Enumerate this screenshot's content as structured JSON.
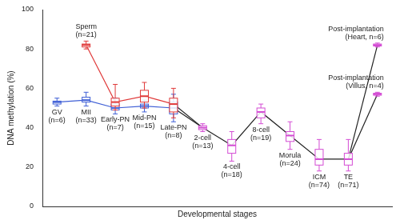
{
  "chart_data": {
    "type": "line",
    "x_label": "Developmental stages",
    "y_label": "DNA methylation (%)",
    "categories": [
      null,
      null,
      null,
      null,
      null,
      null,
      null,
      null,
      null,
      null,
      null,
      null
    ],
    "ylim": [
      0,
      100
    ],
    "yticks": [
      0,
      20,
      40,
      60,
      80,
      100
    ],
    "grid": false,
    "tick_labels": "y",
    "series": [
      {
        "color": "#3f5fd6",
        "values": [
          53,
          54,
          50,
          51,
          50,
          null,
          null,
          null,
          null,
          null,
          null,
          null
        ],
        "q1": [
          52,
          53,
          49,
          50,
          47,
          null,
          null,
          null,
          null,
          null,
          null,
          null
        ],
        "q3": [
          53.5,
          55.5,
          52,
          52,
          53,
          null,
          null,
          null,
          null,
          null,
          null,
          null
        ],
        "low": [
          51,
          51,
          47,
          48,
          43,
          null,
          null,
          null,
          null,
          null,
          null,
          null
        ],
        "high": [
          55,
          58,
          55,
          54,
          57,
          null,
          null,
          null,
          null,
          null,
          null,
          null
        ],
        "point_labels": [
          [
            "GV",
            "(n=6)"
          ],
          [
            "MII",
            "(n=33)"
          ],
          [
            "Early-PN",
            "(n=7)"
          ],
          [
            "Mid-PN",
            "(n=15)"
          ],
          [
            "Late-PN",
            "(n=8)"
          ],
          null,
          null,
          null,
          null,
          null,
          null,
          null
        ]
      },
      {
        "color": "#e03a3a",
        "values": [
          null,
          82,
          53,
          56,
          52,
          null,
          null,
          null,
          null,
          null,
          null,
          null
        ],
        "q1": [
          null,
          81,
          51,
          53,
          48,
          null,
          null,
          null,
          null,
          null,
          null,
          null
        ],
        "q3": [
          null,
          82.5,
          55,
          59,
          55,
          null,
          null,
          null,
          null,
          null,
          null,
          null
        ],
        "low": [
          null,
          80,
          49,
          50,
          45,
          null,
          null,
          null,
          null,
          null,
          null,
          null
        ],
        "high": [
          null,
          84,
          62,
          63,
          60,
          null,
          null,
          null,
          null,
          null,
          null,
          null
        ],
        "point_labels": [
          null,
          [
            "Sperm",
            "(n=21)"
          ],
          null,
          null,
          null,
          null,
          null,
          null,
          null,
          null,
          null,
          null
        ]
      },
      {
        "color": "#d44cd4",
        "values": [
          null,
          null,
          null,
          null,
          null,
          40,
          31,
          48,
          36,
          24,
          24,
          null
        ],
        "q1": [
          null,
          null,
          null,
          null,
          null,
          39,
          27,
          45,
          33,
          21,
          21,
          null
        ],
        "q3": [
          null,
          null,
          null,
          null,
          null,
          41,
          34,
          50,
          38,
          29,
          27,
          null
        ],
        "low": [
          null,
          null,
          null,
          null,
          null,
          38,
          23,
          42,
          29,
          18,
          18,
          null
        ],
        "high": [
          null,
          null,
          null,
          null,
          null,
          42,
          38,
          52,
          43,
          34,
          34,
          null
        ],
        "point_labels": [
          null,
          null,
          null,
          null,
          null,
          [
            "2-cell",
            "(n=13)"
          ],
          [
            "4-cell",
            "(n=18)"
          ],
          [
            "8-cell",
            "(n=19)"
          ],
          [
            "Morula",
            "(n=24)"
          ],
          [
            "ICM",
            "(n=74)"
          ],
          [
            "TE",
            "(n=71)"
          ],
          null
        ]
      },
      {
        "color": "#d44cd4",
        "values": [
          null,
          null,
          null,
          null,
          null,
          null,
          null,
          null,
          null,
          null,
          null,
          82
        ],
        "q1": [
          null,
          null,
          null,
          null,
          null,
          null,
          null,
          null,
          null,
          null,
          null,
          81.5
        ],
        "q3": [
          null,
          null,
          null,
          null,
          null,
          null,
          null,
          null,
          null,
          null,
          null,
          82.5
        ],
        "low": [
          null,
          null,
          null,
          null,
          null,
          null,
          null,
          null,
          null,
          null,
          null,
          81
        ],
        "high": [
          null,
          null,
          null,
          null,
          null,
          null,
          null,
          null,
          null,
          null,
          null,
          83
        ],
        "point_labels": [
          null,
          null,
          null,
          null,
          null,
          null,
          null,
          null,
          null,
          null,
          null,
          [
            "Post-implantation",
            "(Heart, n=6)"
          ]
        ]
      },
      {
        "color": "#d44cd4",
        "values": [
          null,
          null,
          null,
          null,
          null,
          null,
          null,
          null,
          null,
          null,
          null,
          57
        ],
        "q1": [
          null,
          null,
          null,
          null,
          null,
          null,
          null,
          null,
          null,
          null,
          null,
          56.5
        ],
        "q3": [
          null,
          null,
          null,
          null,
          null,
          null,
          null,
          null,
          null,
          null,
          null,
          57.5
        ],
        "low": [
          null,
          null,
          null,
          null,
          null,
          null,
          null,
          null,
          null,
          null,
          null,
          56
        ],
        "high": [
          null,
          null,
          null,
          null,
          null,
          null,
          null,
          null,
          null,
          null,
          null,
          58
        ],
        "point_labels": [
          null,
          null,
          null,
          null,
          null,
          null,
          null,
          null,
          null,
          null,
          null,
          [
            "Post-implantation",
            "(Villus, n=4)"
          ]
        ]
      }
    ]
  }
}
